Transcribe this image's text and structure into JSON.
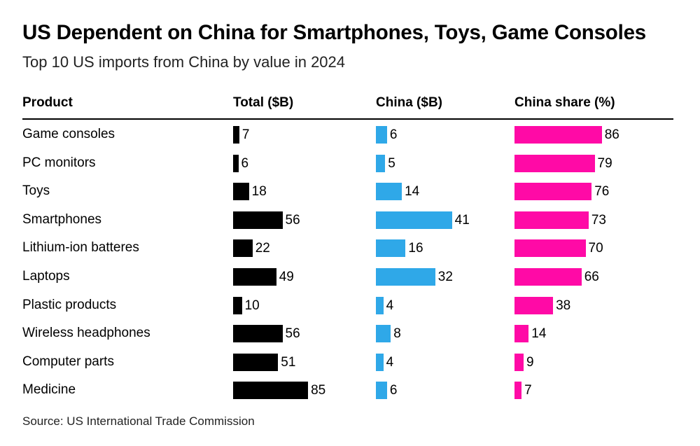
{
  "title": "US Dependent on China for Smartphones, Toys, Game Consoles",
  "subtitle": "Top 10 US imports from China by value in 2024",
  "source": "Source: US International Trade Commission",
  "chart_data": {
    "type": "table",
    "columns": [
      "Product",
      "Total ($B)",
      "China ($B)",
      "China share (%)"
    ],
    "colors": {
      "total": "#000000",
      "china": "#2fa8e8",
      "share": "#ff0aa6"
    },
    "rows": [
      {
        "product": "Game consoles",
        "total": 7,
        "china": 6,
        "share": 86
      },
      {
        "product": "PC monitors",
        "total": 6,
        "china": 5,
        "share": 79
      },
      {
        "product": "Toys",
        "total": 18,
        "china": 14,
        "share": 76
      },
      {
        "product": "Smartphones",
        "total": 56,
        "china": 41,
        "share": 73
      },
      {
        "product": "Lithium-ion batteres",
        "total": 22,
        "china": 16,
        "share": 70
      },
      {
        "product": "Laptops",
        "total": 49,
        "china": 32,
        "share": 66
      },
      {
        "product": "Plastic products",
        "total": 10,
        "china": 4,
        "share": 38
      },
      {
        "product": "Wireless headphones",
        "total": 56,
        "china": 8,
        "share": 14
      },
      {
        "product": "Computer parts",
        "total": 51,
        "china": 4,
        "share": 9
      },
      {
        "product": "Medicine",
        "total": 85,
        "china": 6,
        "share": 7
      }
    ]
  }
}
